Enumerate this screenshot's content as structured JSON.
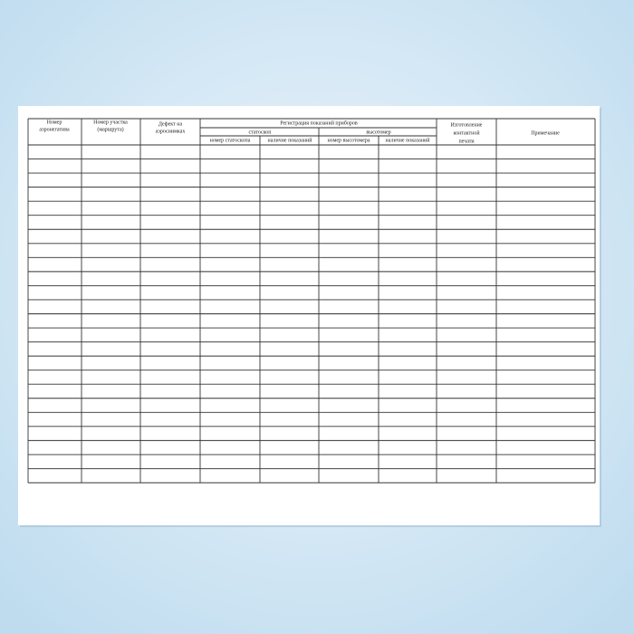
{
  "document": {
    "table": {
      "negative_number": [
        "Номер",
        "аэронегатива"
      ],
      "route_number": [
        "Номер участка",
        "(маршрута)"
      ],
      "defect": [
        "Дефект на",
        "аэроснимках"
      ],
      "registration": "Регистрация показаний приборов",
      "statoscope": "статоскоп",
      "altimeter": "высотомер",
      "statoscope_number": "номер статоскопа",
      "statoscope_readings": "наличие показаний",
      "altimeter_number": "номер высотомера",
      "altimeter_readings": "наличие показаний",
      "contact_print": [
        "Изготовление",
        "контактной",
        "печати"
      ],
      "remarks": "Примечание"
    }
  }
}
